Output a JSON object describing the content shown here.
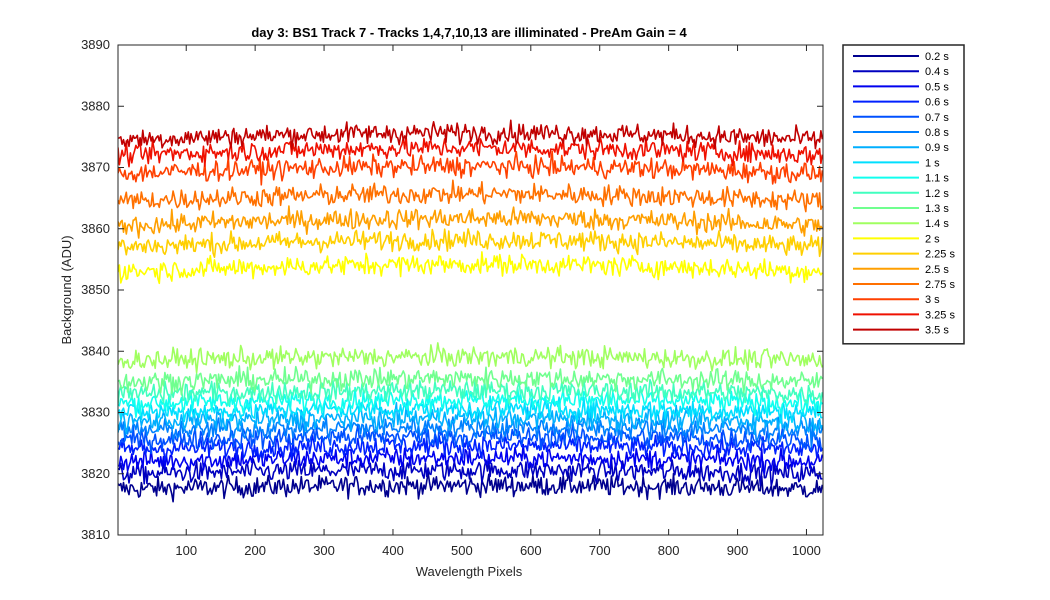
{
  "chart_data": {
    "type": "line",
    "title": "day 3: BS1  Track 7 - Tracks 1,4,7,10,13 are illiminated - PreAm Gain = 4",
    "xlabel": "Wavelength Pixels",
    "ylabel": "Background (ADU)",
    "xlim": [
      1,
      1024
    ],
    "ylim": [
      3810,
      3890
    ],
    "xticks": [
      100,
      200,
      300,
      400,
      500,
      600,
      700,
      800,
      900,
      1000
    ],
    "yticks": [
      3810,
      3820,
      3830,
      3840,
      3850,
      3860,
      3870,
      3880,
      3890
    ],
    "grid": false,
    "legend_position": "outside-right",
    "noise_amplitude_adu": 2.2,
    "series": [
      {
        "name": "0.2 s",
        "baseline": 3817.5,
        "color": "#00008F"
      },
      {
        "name": "0.4 s",
        "baseline": 3820.0,
        "color": "#0000BF"
      },
      {
        "name": "0.5 s",
        "baseline": 3822.0,
        "color": "#0000EF"
      },
      {
        "name": "0.6 s",
        "baseline": 3824.0,
        "color": "#0020FF"
      },
      {
        "name": "0.7 s",
        "baseline": 3825.5,
        "color": "#0050FF"
      },
      {
        "name": "0.8 s",
        "baseline": 3827.0,
        "color": "#0080FF"
      },
      {
        "name": "0.9 s",
        "baseline": 3828.5,
        "color": "#00AFFF"
      },
      {
        "name": "1 s",
        "baseline": 3830.0,
        "color": "#00DFFF"
      },
      {
        "name": "1.1 s",
        "baseline": 3831.5,
        "color": "#10FFEF"
      },
      {
        "name": "1.2 s",
        "baseline": 3833.0,
        "color": "#40FFBF"
      },
      {
        "name": "1.3 s",
        "baseline": 3835.0,
        "color": "#70FF8F"
      },
      {
        "name": "1.4 s",
        "baseline": 3838.5,
        "color": "#A0FF60"
      },
      {
        "name": "2 s",
        "baseline": 3853.0,
        "color": "#FFFF00"
      },
      {
        "name": "2.25 s",
        "baseline": 3857.0,
        "color": "#FFCF00"
      },
      {
        "name": "2.5 s",
        "baseline": 3860.5,
        "color": "#FF9F00"
      },
      {
        "name": "2.75 s",
        "baseline": 3864.5,
        "color": "#FF7000"
      },
      {
        "name": "3 s",
        "baseline": 3869.0,
        "color": "#FF4000"
      },
      {
        "name": "3.25 s",
        "baseline": 3872.0,
        "color": "#EF1000"
      },
      {
        "name": "3.5 s",
        "baseline": 3874.5,
        "color": "#C00000"
      }
    ]
  }
}
